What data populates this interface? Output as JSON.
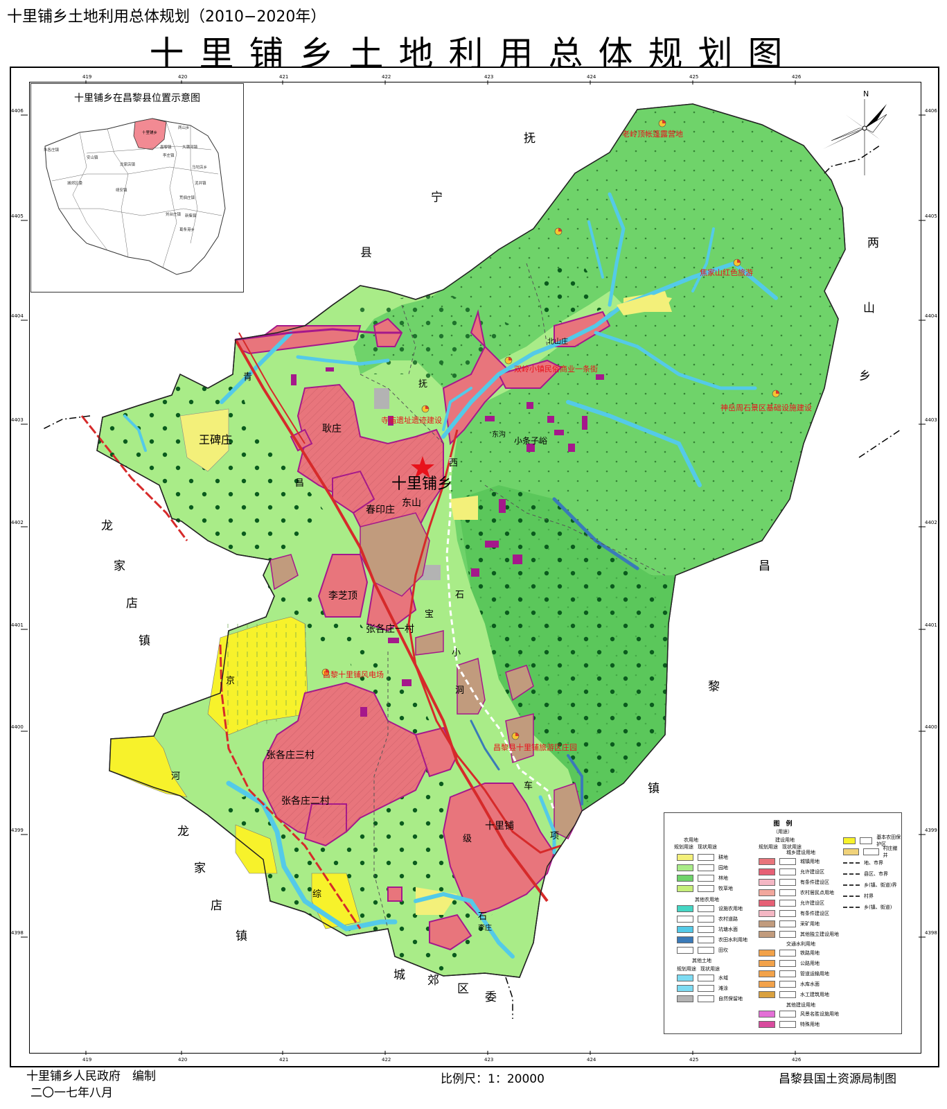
{
  "header": {
    "subtitle": "十里铺乡土地利用总体规划（2010−2020年）",
    "title": "十里铺乡土地利用总体规划图"
  },
  "footer": {
    "compiler": "十里铺乡人民政府　编制",
    "date": "二〇一七年八月",
    "scale": "比例尺：1：20000",
    "drawer": "昌黎县国土资源局制图"
  },
  "compass": {
    "north": "N"
  },
  "inset": {
    "title": "十里铺乡在昌黎县位置示意图",
    "highlight_label": "十里铺乡",
    "labels": [
      "两山乡",
      "昌黎镇",
      "大蒲河镇",
      "朱各庄镇",
      "安山镇",
      "龙家店镇",
      "城郊区委",
      "靖安镇",
      "马坨店乡",
      "泥井镇",
      "李庄镇",
      "荒佃庄镇",
      "刘台庄镇",
      "新集镇",
      "葛条港乡"
    ]
  },
  "map": {
    "neighbors": [
      {
        "text": "抚宁县",
        "chars": [
          "抚",
          "宁",
          "县"
        ]
      },
      {
        "text": "两山乡",
        "chars": [
          "两",
          "山",
          "乡"
        ]
      },
      {
        "text": "昌黎镇",
        "chars": [
          "昌",
          "黎",
          "镇"
        ]
      },
      {
        "text": "龙家店镇",
        "chars": [
          "龙",
          "家",
          "店",
          "镇"
        ]
      },
      {
        "text": "龙家店镇",
        "chars": [
          "龙",
          "家",
          "店",
          "镇"
        ]
      },
      {
        "text": "城郊区委",
        "chars": [
          "城",
          "郊",
          "区",
          "委"
        ]
      }
    ],
    "roads": [
      "京",
      "河",
      "综",
      "昌",
      "青",
      "抚",
      "级",
      "项",
      "车",
      "洞",
      "石",
      "西",
      "小",
      "宝",
      "石"
    ],
    "settlements": [
      "十里铺乡",
      "王碑庄",
      "耿庄",
      "东山",
      "春印庄",
      "李芝顶",
      "张各庄一村",
      "张各庄三村",
      "张各庄二村",
      "十里铺",
      "东沟",
      "北山庄",
      "小条子峪",
      "李庄"
    ],
    "projects": [
      "老岭顶帐篷露营地",
      "焦家山红色旅游",
      "双岭小镇民俗商业一条街",
      "神岳周石景区基础设施建设",
      "寺庙遗址遗迹建设",
      "昌黎十里铺风电场",
      "昌黎县十里铺旅游区庄园"
    ]
  },
  "grid": {
    "top": [
      "419",
      "420",
      "421",
      "422",
      "423",
      "424",
      "425",
      "426"
    ],
    "bottom": [
      "419",
      "420",
      "421",
      "422",
      "423",
      "424",
      "425",
      "426"
    ],
    "left": [
      "4406",
      "4405",
      "4404",
      "4403",
      "4402",
      "4401",
      "4400",
      "4399",
      "4398"
    ],
    "right": [
      "4406",
      "4405",
      "4404",
      "4403",
      "4402",
      "4401",
      "4400",
      "4399",
      "4398"
    ]
  },
  "legend": {
    "title": "图　例",
    "subtitle": "（用途）",
    "col_heads": [
      "农用地",
      "建设用地"
    ],
    "sub_heads": [
      "规划用途",
      "现状用途",
      "规划用途",
      "现状用途"
    ],
    "farm": [
      {
        "label": "耕地",
        "color": "#f3f07a"
      },
      {
        "label": "园地",
        "color": "#a9ec88"
      },
      {
        "label": "林地",
        "color": "#6fd36a"
      },
      {
        "label": "牧草地",
        "color": "#c6ee7a"
      }
    ],
    "other_farm_head": "其他农用地",
    "other_farm": [
      {
        "label": "设施农用地",
        "color": "#45d6c4"
      },
      {
        "label": "农村道路",
        "color": "#ffffff"
      },
      {
        "label": "坑塘水面",
        "color": "#54cae8"
      },
      {
        "label": "农田水利用地",
        "color": "#3a7ab8"
      },
      {
        "label": "田坎",
        "color": "#ffffff"
      }
    ],
    "other_land_head": "其他土地",
    "other_land_sub": [
      "规划用途",
      "现状用途"
    ],
    "other_land": [
      {
        "label": "水域",
        "color": "#7ddbf2"
      },
      {
        "label": "滩涂",
        "color": "#7ddbf2"
      },
      {
        "label": "自然保留地",
        "color": "#b3b3b3"
      }
    ],
    "build_head": "城乡建设用地",
    "build": [
      {
        "label": "城镇用地",
        "color": "#e8757c"
      },
      {
        "label": "允许建设区",
        "color": "#e66075"
      },
      {
        "label": "有条件建设区",
        "color": "#f4b7c4"
      },
      {
        "label": "农村居民点用地",
        "color": "#f1a79d"
      },
      {
        "label": "允许建设区",
        "color": "#e66075"
      },
      {
        "label": "有条件建设区",
        "color": "#f4b7c4"
      },
      {
        "label": "采矿用地",
        "color": "#c19b7d"
      },
      {
        "label": "其他独立建设用地",
        "color": "#c19b7d"
      }
    ],
    "traffic_head": "交通水利用地",
    "traffic": [
      {
        "label": "铁路用地",
        "color": "#f2a24a"
      },
      {
        "label": "公路用地",
        "color": "#f2a24a"
      },
      {
        "label": "管道运输用地",
        "color": "#f2a24a"
      },
      {
        "label": "水库水面",
        "color": "#f2a24a"
      },
      {
        "label": "水工建筑用地",
        "color": "#d9a13f"
      }
    ],
    "other_build_head": "其他建设用地",
    "other_build": [
      {
        "label": "风景名胜设施用地",
        "color": "#e36fd6"
      },
      {
        "label": "特殊用地",
        "color": "#d84b9e"
      }
    ],
    "right_col": [
      {
        "label": "基本农田保护区",
        "color": "#f7f22b"
      },
      {
        "label": "村庄撤并",
        "color": "#f0d27a"
      },
      {
        "label": "地、市界"
      },
      {
        "label": "县区、市界"
      },
      {
        "label": "乡(镇、街道)界"
      },
      {
        "label": "村界"
      },
      {
        "label": "乡(镇、街道)"
      }
    ]
  },
  "colors": {
    "forest": "#6fd36a",
    "orchard": "#a9ec88",
    "plowland": "#f3f07a",
    "prime_farm": "#f7f22b",
    "town": "#e8757c",
    "water": "#54cae8",
    "mine": "#c19b7d",
    "outline": "#a5188b"
  }
}
